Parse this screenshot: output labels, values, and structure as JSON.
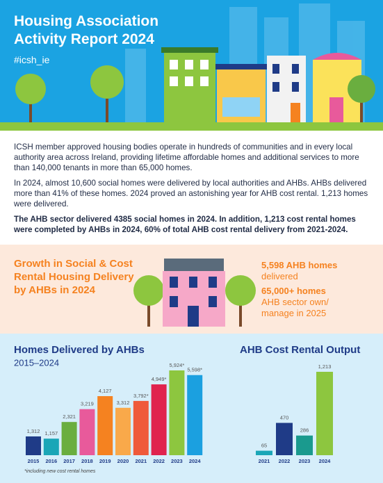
{
  "header": {
    "title": "Housing Association Activity Report 2024",
    "hashtag": "#icsh_ie"
  },
  "intro": {
    "paragraphs": [
      "ICSH member approved housing bodies operate in hundreds of communities and in every local authority area across Ireland, providing lifetime affordable homes and additional services to more than 140,000 tenants in more than 65,000 homes.",
      "In 2024, almost 10,600 social homes were delivered by local authorities and AHBs. AHBs delivered more than 41% of these homes. 2024 proved an astonishing year for AHB cost rental. 1,213 homes were delivered.",
      "The AHB sector delivered 4385 social homes in 2024. In addition, 1,213 cost rental homes were completed by AHBs in 2024, 60% of total AHB cost rental delivery from 2021-2024."
    ]
  },
  "highlight": {
    "heading": "Growth in Social & Cost Rental Housing Delivery by AHBs in 2024",
    "stats": [
      {
        "value": "5,598 AHB homes",
        "label": "delivered"
      },
      {
        "value": "65,000+ homes",
        "label": "AHB sector own/ manage in 2025"
      }
    ]
  },
  "chart_data": [
    {
      "type": "bar",
      "title": "Homes Delivered by AHBs",
      "subtitle": "2015–2024",
      "categories": [
        "2015",
        "2016",
        "2017",
        "2018",
        "2019",
        "2020",
        "2021",
        "2022",
        "2023",
        "2024"
      ],
      "values": [
        1312,
        1157,
        2321,
        3219,
        4127,
        3312,
        3792,
        4949,
        5924,
        5598
      ],
      "value_labels": [
        "1,312",
        "1,157",
        "2,321",
        "3,219",
        "4,127",
        "3,312",
        "3,792*",
        "4,949*",
        "5,924*",
        "5,598*"
      ],
      "colors": [
        "#1f3b87",
        "#1aa6b7",
        "#6aae3f",
        "#e85a9b",
        "#f58220",
        "#f9a94a",
        "#ef5a3a",
        "#e0234e",
        "#8dc63f",
        "#1ba0e0"
      ],
      "note": "*including new cost rental homes"
    },
    {
      "type": "bar",
      "title": "AHB Cost Rental Output",
      "categories": [
        "2021",
        "2022",
        "2023",
        "2024"
      ],
      "values": [
        65,
        470,
        286,
        1213
      ],
      "value_labels": [
        "65",
        "470",
        "286",
        "1,213"
      ],
      "colors": [
        "#1aa6b7",
        "#1f3b87",
        "#1a9a8e",
        "#8dc63f"
      ]
    }
  ]
}
